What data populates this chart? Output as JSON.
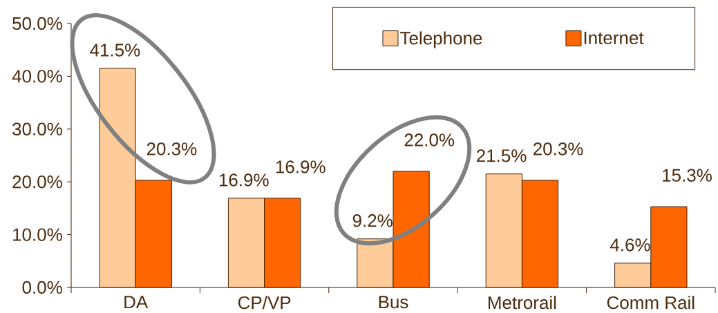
{
  "chart_data": {
    "type": "bar",
    "categories": [
      "DA",
      "CP/VP",
      "Bus",
      "Metrorail",
      "Comm Rail"
    ],
    "series": [
      {
        "name": "Telephone",
        "color": "#ffcc99",
        "values": [
          41.5,
          16.9,
          9.2,
          21.5,
          4.6
        ],
        "value_labels": [
          "41.5%",
          "16.9%",
          "9.2%",
          "21.5%",
          "4.6%"
        ]
      },
      {
        "name": "Internet",
        "color": "#ff6600",
        "values": [
          20.3,
          16.9,
          22.0,
          20.3,
          15.3
        ],
        "value_labels": [
          "20.3%",
          "16.9%",
          "22.0%",
          "20.3%",
          "15.3%"
        ]
      }
    ],
    "ylim": [
      0,
      50
    ],
    "yticks": [
      {
        "value": 0,
        "label": "0.0%"
      },
      {
        "value": 10,
        "label": "10.0%"
      },
      {
        "value": 20,
        "label": "20.0%"
      },
      {
        "value": 30,
        "label": "30.0%"
      },
      {
        "value": 40,
        "label": "40.0%"
      },
      {
        "value": 50,
        "label": "50.0%"
      }
    ],
    "legend": "top right"
  }
}
